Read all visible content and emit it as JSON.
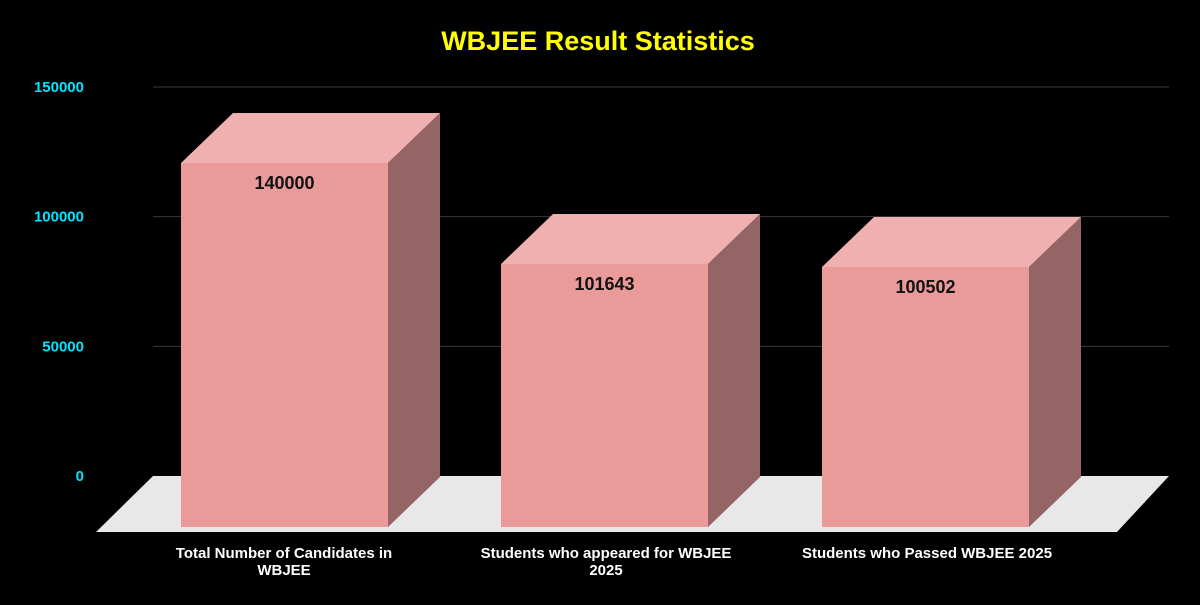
{
  "chart_data": {
    "type": "bar",
    "title": "WBJEE Result Statistics",
    "xlabel": "",
    "ylabel": "",
    "ylim": [
      0,
      150000
    ],
    "yticks": [
      0,
      50000,
      100000,
      150000
    ],
    "ytick_labels": [
      "0",
      "50000",
      "100000",
      "150000"
    ],
    "categories": [
      [
        "Total Number of Candidates in",
        "WBJEE"
      ],
      [
        "Students who appeared for WBJEE",
        "2025"
      ],
      [
        "Students who Passed WBJEE 2025"
      ]
    ],
    "values": [
      140000,
      101643,
      100502
    ],
    "value_labels": [
      "140000",
      "101643",
      "100502"
    ],
    "grid": true,
    "legend": "none"
  },
  "colors": {
    "background": "#000000",
    "title": "#ffff00",
    "tick_label": "#00e5ff",
    "grid": "#3a3a3a",
    "bar_front": "#eb9a9a",
    "bar_top": "#f0b0b0",
    "bar_side": "#956464",
    "floor": "#e8e8e8",
    "value_label": "#111111",
    "category_label": "#ffffff"
  }
}
